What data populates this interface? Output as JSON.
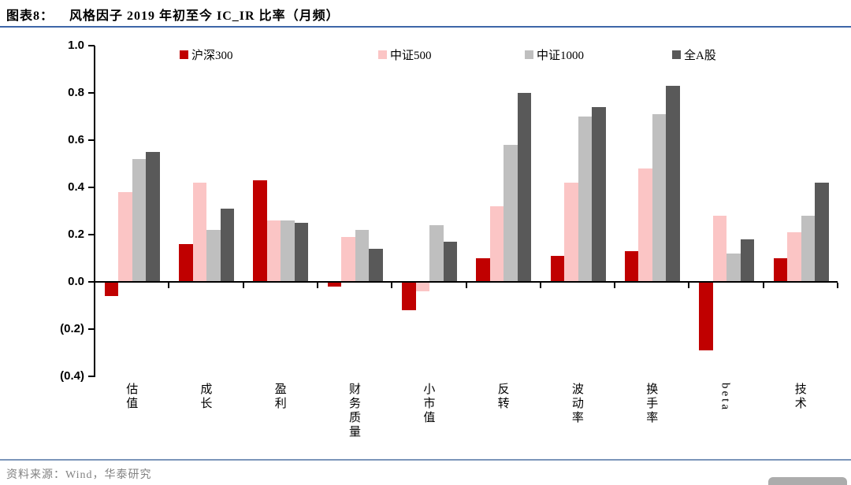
{
  "header": {
    "prefix": "图表8：",
    "title": "风格因子 2019 年初至今 IC_IR 比率（月频）"
  },
  "footer": {
    "source": "资料来源：Wind，华泰研究"
  },
  "chart_data": {
    "type": "bar",
    "title": "风格因子 2019 年初至今 IC_IR 比率（月频）",
    "xlabel": "",
    "ylabel": "",
    "ylim": [
      -0.4,
      1.0
    ],
    "grid": false,
    "legend_position": "top",
    "yticks": [
      {
        "label": "1.0",
        "value": 1.0
      },
      {
        "label": "0.8",
        "value": 0.8
      },
      {
        "label": "0.6",
        "value": 0.6
      },
      {
        "label": "0.4",
        "value": 0.4
      },
      {
        "label": "0.2",
        "value": 0.2
      },
      {
        "label": "0.0",
        "value": 0.0
      },
      {
        "label": "(0.2)",
        "value": -0.2
      },
      {
        "label": "(0.4)",
        "value": -0.4
      }
    ],
    "categories": [
      "估值",
      "成长",
      "盈利",
      "财务质量",
      "小市值",
      "反转",
      "波动率",
      "换手率",
      "beta",
      "技术"
    ],
    "series": [
      {
        "name": "沪深300",
        "color": "#c00000",
        "values": [
          -0.06,
          0.16,
          0.43,
          -0.02,
          -0.12,
          0.1,
          0.11,
          0.13,
          -0.29,
          0.1
        ]
      },
      {
        "name": "中证500",
        "color": "#fbc5c5",
        "values": [
          0.38,
          0.42,
          0.26,
          0.19,
          -0.04,
          0.32,
          0.42,
          0.48,
          0.28,
          0.21
        ]
      },
      {
        "name": "中证1000",
        "color": "#bfbfbf",
        "values": [
          0.52,
          0.22,
          0.26,
          0.22,
          0.24,
          0.58,
          0.7,
          0.71,
          0.12,
          0.28
        ]
      },
      {
        "name": "全A股",
        "color": "#595959",
        "values": [
          0.55,
          0.31,
          0.25,
          0.14,
          0.17,
          0.8,
          0.74,
          0.83,
          0.18,
          0.42
        ]
      }
    ]
  }
}
